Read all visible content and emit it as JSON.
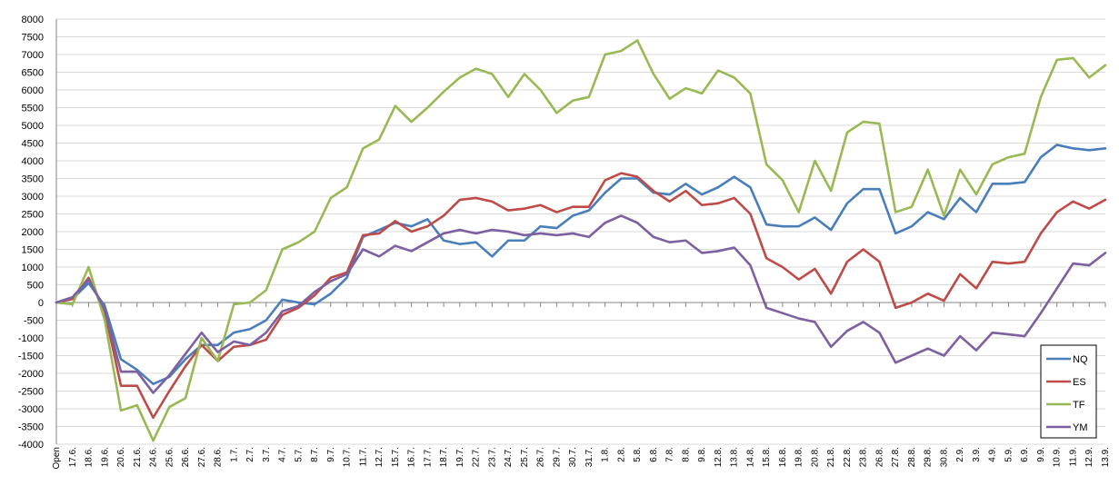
{
  "chart_data": {
    "type": "line",
    "title": "",
    "xlabel": "",
    "ylabel": "",
    "ylim": [
      -4000,
      8000
    ],
    "y_ticks": [
      -4000,
      -3500,
      -3000,
      -2500,
      -2000,
      -1500,
      -1000,
      -500,
      0,
      500,
      1000,
      1500,
      2000,
      2500,
      3000,
      3500,
      4000,
      4500,
      5000,
      5500,
      6000,
      6500,
      7000,
      7500,
      8000
    ],
    "grid": "horizontal",
    "legend_position": "right",
    "categories": [
      "Open",
      "17.6.",
      "18.6.",
      "19.6.",
      "20.6.",
      "21.6.",
      "24.6.",
      "25.6.",
      "26.6.",
      "27.6.",
      "28.6.",
      "1.7.",
      "2.7.",
      "3.7.",
      "4.7.",
      "5.7.",
      "8.7.",
      "9.7.",
      "10.7.",
      "11.7.",
      "12.7.",
      "15.7.",
      "16.7.",
      "17.7.",
      "18.7.",
      "19.7.",
      "22.7.",
      "23.7.",
      "24.7.",
      "25.7.",
      "26.7.",
      "29.7.",
      "30.7.",
      "31.7.",
      "1.8.",
      "2.8.",
      "5.8.",
      "6.8.",
      "7.8.",
      "8.8.",
      "9.8.",
      "12.8.",
      "13.8.",
      "14.8.",
      "15.8.",
      "16.8.",
      "19.8.",
      "20.8.",
      "21.8.",
      "22.8.",
      "23.8.",
      "26.8.",
      "27.8.",
      "28.8.",
      "29.8.",
      "30.8.",
      "2.9.",
      "3.9.",
      "4.9.",
      "5.9.",
      "6.9.",
      "9.9.",
      "10.9.",
      "11.9.",
      "12.9.",
      "13.9."
    ],
    "series": [
      {
        "name": "NQ",
        "color": "#4a7ebb",
        "values": [
          0,
          100,
          550,
          -100,
          -1600,
          -1900,
          -2300,
          -2100,
          -1600,
          -1200,
          -1200,
          -850,
          -750,
          -500,
          80,
          0,
          -50,
          250,
          700,
          1850,
          2050,
          2250,
          2150,
          2350,
          1750,
          1650,
          1700,
          1300,
          1750,
          1750,
          2150,
          2100,
          2450,
          2600,
          3100,
          3500,
          3500,
          3100,
          3050,
          3350,
          3050,
          3250,
          3550,
          3250,
          2200,
          2150,
          2150,
          2400,
          2050,
          2800,
          3200,
          3200,
          1950,
          2150,
          2550,
          2350,
          2950,
          2550,
          3350,
          3350,
          3400,
          4100,
          4450,
          4350,
          4300,
          4350
        ]
      },
      {
        "name": "ES",
        "color": "#be4b48",
        "values": [
          0,
          100,
          700,
          -250,
          -2350,
          -2350,
          -3250,
          -2500,
          -1800,
          -1200,
          -1650,
          -1250,
          -1200,
          -1050,
          -350,
          -150,
          200,
          700,
          850,
          1900,
          1950,
          2300,
          2000,
          2150,
          2450,
          2900,
          2950,
          2850,
          2600,
          2650,
          2750,
          2550,
          2700,
          2700,
          3450,
          3650,
          3550,
          3150,
          2850,
          3150,
          2750,
          2800,
          2950,
          2500,
          1250,
          1000,
          650,
          950,
          250,
          1150,
          1500,
          1150,
          -150,
          0,
          250,
          50,
          800,
          400,
          1150,
          1100,
          1150,
          1950,
          2550,
          2850,
          2650,
          2900
        ]
      },
      {
        "name": "TF",
        "color": "#98b954",
        "values": [
          0,
          -50,
          1000,
          -500,
          -3050,
          -2900,
          -3900,
          -2950,
          -2700,
          -1000,
          -1650,
          -50,
          0,
          350,
          1500,
          1700,
          2000,
          2950,
          3250,
          4350,
          4600,
          5550,
          5100,
          5500,
          5950,
          6350,
          6600,
          6450,
          5800,
          6450,
          6000,
          5350,
          5700,
          5800,
          7000,
          7100,
          7400,
          6450,
          5750,
          6050,
          5900,
          6550,
          6350,
          5900,
          3900,
          3450,
          2550,
          4000,
          3150,
          4800,
          5100,
          5050,
          2550,
          2700,
          3750,
          2450,
          3750,
          3050,
          3900,
          4100,
          4200,
          5800,
          6850,
          6900,
          6350,
          6700
        ]
      },
      {
        "name": "YM",
        "color": "#7d60a0",
        "values": [
          0,
          150,
          650,
          -200,
          -1950,
          -1950,
          -2550,
          -2050,
          -1450,
          -850,
          -1400,
          -1100,
          -1200,
          -850,
          -250,
          -100,
          300,
          600,
          800,
          1500,
          1300,
          1600,
          1450,
          1700,
          1950,
          2050,
          1950,
          2050,
          2000,
          1900,
          1950,
          1900,
          1950,
          1850,
          2250,
          2450,
          2250,
          1850,
          1700,
          1750,
          1400,
          1450,
          1550,
          1050,
          -150,
          -300,
          -450,
          -550,
          -1250,
          -800,
          -550,
          -850,
          -1700,
          -1500,
          -1300,
          -1500,
          -950,
          -1350,
          -850,
          -900,
          -950,
          -300,
          400,
          1100,
          1050,
          1400
        ]
      }
    ]
  }
}
